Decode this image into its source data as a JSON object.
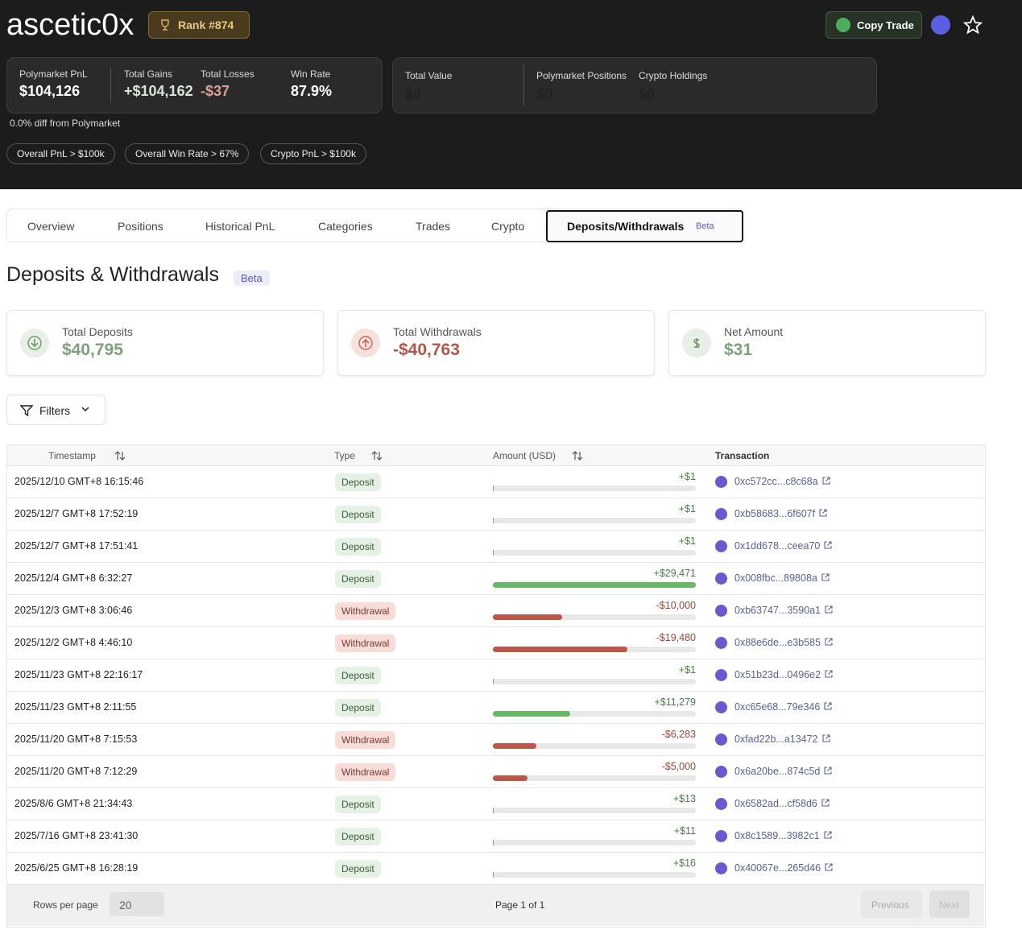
{
  "header": {
    "username": "ascetic0x",
    "rank": "Rank #874",
    "copy_trade": "Copy Trade",
    "stats": [
      {
        "label": "Polymarket PnL",
        "value": "$104,126"
      },
      {
        "label": "Total Gains",
        "value": "+$104,162"
      },
      {
        "label": "Total Losses",
        "value": "-$37"
      },
      {
        "label": "Win Rate",
        "value": "87.9%"
      }
    ],
    "portfolio": [
      {
        "label": "Total Value",
        "value": "$0"
      },
      {
        "label": "Polymarket Positions",
        "value": "$0"
      },
      {
        "label": "Crypto Holdings",
        "value": "$0"
      }
    ],
    "diff_note": "0.0% diff from Polymarket",
    "badges": [
      "Overall PnL > $100k",
      "Overall Win Rate > 67%",
      "Crypto PnL > $100k"
    ]
  },
  "tabs": {
    "items": [
      "Overview",
      "Positions",
      "Historical PnL",
      "Categories",
      "Trades",
      "Crypto",
      "Deposits/Withdrawals"
    ],
    "active_badge": "Beta"
  },
  "section": {
    "title": "Deposits & Withdrawals",
    "badge": "Beta"
  },
  "summary": [
    {
      "label": "Total Deposits",
      "value": "$40,795"
    },
    {
      "label": "Total Withdrawals",
      "value": "-$40,763"
    },
    {
      "label": "Net Amount",
      "value": "$31"
    }
  ],
  "filters": "Filters",
  "table": {
    "columns": [
      "Timestamp",
      "Type",
      "Amount (USD)",
      "Transaction"
    ],
    "rows": [
      {
        "timestamp": "2025/12/10 GMT+8 16:15:46",
        "type": "Deposit",
        "amount": 1,
        "amount_label": "+$1",
        "transaction": "0xc572cc...c8c68a"
      },
      {
        "timestamp": "2025/12/7 GMT+8 17:52:19",
        "type": "Deposit",
        "amount": 1,
        "amount_label": "+$1",
        "transaction": "0xb58683...6f607f"
      },
      {
        "timestamp": "2025/12/7 GMT+8 17:51:41",
        "type": "Deposit",
        "amount": 1,
        "amount_label": "+$1",
        "transaction": "0x1dd678...ceea70"
      },
      {
        "timestamp": "2025/12/4 GMT+8 6:32:27",
        "type": "Deposit",
        "amount": 29471,
        "amount_label": "+$29,471",
        "transaction": "0x008fbc...89808a"
      },
      {
        "timestamp": "2025/12/3 GMT+8 3:06:46",
        "type": "Withdrawal",
        "amount": -10000,
        "amount_label": "-$10,000",
        "transaction": "0xb63747...3590a1"
      },
      {
        "timestamp": "2025/12/2 GMT+8 4:46:10",
        "type": "Withdrawal",
        "amount": -19480,
        "amount_label": "-$19,480",
        "transaction": "0x88e6de...e3b585"
      },
      {
        "timestamp": "2025/11/23 GMT+8 22:16:17",
        "type": "Deposit",
        "amount": 1,
        "amount_label": "+$1",
        "transaction": "0x51b23d...0496e2"
      },
      {
        "timestamp": "2025/11/23 GMT+8 2:11:55",
        "type": "Deposit",
        "amount": 11279,
        "amount_label": "+$11,279",
        "transaction": "0xc65e68...79e346"
      },
      {
        "timestamp": "2025/11/20 GMT+8 7:15:53",
        "type": "Withdrawal",
        "amount": -6283,
        "amount_label": "-$6,283",
        "transaction": "0xfad22b...a13472"
      },
      {
        "timestamp": "2025/11/20 GMT+8 7:12:29",
        "type": "Withdrawal",
        "amount": -5000,
        "amount_label": "-$5,000",
        "transaction": "0x6a20be...874c5d"
      },
      {
        "timestamp": "2025/8/6 GMT+8 21:34:43",
        "type": "Deposit",
        "amount": 13,
        "amount_label": "+$13",
        "transaction": "0x6582ad...cf58d6"
      },
      {
        "timestamp": "2025/7/16 GMT+8 23:41:30",
        "type": "Deposit",
        "amount": 11,
        "amount_label": "+$11",
        "transaction": "0x8c1589...3982c1"
      },
      {
        "timestamp": "2025/6/25 GMT+8 16:28:19",
        "type": "Deposit",
        "amount": 16,
        "amount_label": "+$16",
        "transaction": "0x40067e...265d46"
      }
    ]
  },
  "footer": {
    "rows_per_page_label": "Rows per page",
    "rows_per_page": 20,
    "page": "Page 1 of 1",
    "previous": "Previous",
    "next": "Next"
  }
}
